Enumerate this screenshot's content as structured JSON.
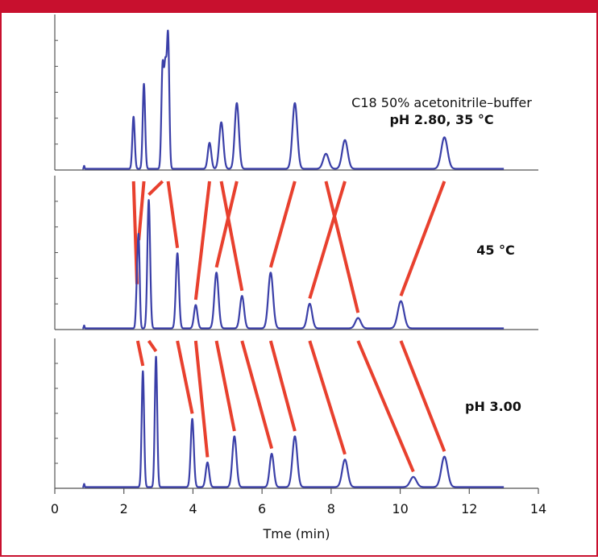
{
  "colors": {
    "frame": "#c8102e",
    "trace": "#3a3fa8",
    "connector": "#e8402e",
    "axis": "#555555"
  },
  "chart_data": {
    "type": "line",
    "title": "",
    "xlabel": "Tme (min)",
    "xlim": [
      0,
      14
    ],
    "xticks": [
      0,
      2,
      4,
      6,
      8,
      10,
      12,
      14
    ],
    "x_end": 13,
    "panels": [
      {
        "label_lines": [
          "C18 50% acetonitrile–buffer",
          "pH 2.80, 35 °C"
        ],
        "label_bold": [
          false,
          true
        ],
        "ymax": 110,
        "dead_time": 0.85,
        "peaks": [
          {
            "t": 2.28,
            "h": 38,
            "w": 0.035
          },
          {
            "t": 2.58,
            "h": 62,
            "w": 0.035
          },
          {
            "t": 3.12,
            "h": 73,
            "w": 0.035
          },
          {
            "t": 3.2,
            "h": 69,
            "w": 0.035
          },
          {
            "t": 3.28,
            "h": 95,
            "w": 0.035
          },
          {
            "t": 4.48,
            "h": 19,
            "w": 0.05
          },
          {
            "t": 4.82,
            "h": 34,
            "w": 0.06
          },
          {
            "t": 5.27,
            "h": 48,
            "w": 0.06
          },
          {
            "t": 6.95,
            "h": 48,
            "w": 0.07
          },
          {
            "t": 7.85,
            "h": 11,
            "w": 0.08
          },
          {
            "t": 8.4,
            "h": 21,
            "w": 0.08
          },
          {
            "t": 11.28,
            "h": 23,
            "w": 0.09
          }
        ]
      },
      {
        "label_lines": [
          "45 °C"
        ],
        "label_bold": [
          true
        ],
        "ymax": 115,
        "dead_time": 0.85,
        "peaks": [
          {
            "t": 2.38,
            "h": 30,
            "w": 0.03
          },
          {
            "t": 2.43,
            "h": 64,
            "w": 0.03
          },
          {
            "t": 2.72,
            "h": 99,
            "w": 0.04
          },
          {
            "t": 3.55,
            "h": 58,
            "w": 0.045
          },
          {
            "t": 4.08,
            "h": 18,
            "w": 0.05
          },
          {
            "t": 4.68,
            "h": 43,
            "w": 0.06
          },
          {
            "t": 5.42,
            "h": 25,
            "w": 0.06
          },
          {
            "t": 6.25,
            "h": 43,
            "w": 0.07
          },
          {
            "t": 7.38,
            "h": 19,
            "w": 0.07
          },
          {
            "t": 8.78,
            "h": 8,
            "w": 0.08
          },
          {
            "t": 10.02,
            "h": 21,
            "w": 0.09
          }
        ]
      },
      {
        "label_lines": [
          "pH 3.00"
        ],
        "label_bold": [
          true
        ],
        "ymax": 100,
        "dead_time": 0.85,
        "peaks": [
          {
            "t": 2.55,
            "h": 80,
            "w": 0.035
          },
          {
            "t": 2.93,
            "h": 90,
            "w": 0.035
          },
          {
            "t": 3.98,
            "h": 47,
            "w": 0.045
          },
          {
            "t": 4.42,
            "h": 17,
            "w": 0.05
          },
          {
            "t": 5.2,
            "h": 35,
            "w": 0.06
          },
          {
            "t": 6.28,
            "h": 23,
            "w": 0.06
          },
          {
            "t": 6.95,
            "h": 35,
            "w": 0.07
          },
          {
            "t": 8.4,
            "h": 19,
            "w": 0.08
          },
          {
            "t": 10.38,
            "h": 7,
            "w": 0.09
          },
          {
            "t": 11.28,
            "h": 21,
            "w": 0.09
          }
        ]
      }
    ],
    "connections_1_2": [
      [
        2.28,
        2.38
      ],
      [
        2.58,
        2.43
      ],
      [
        3.12,
        2.72
      ],
      [
        3.28,
        3.55
      ],
      [
        4.48,
        4.08
      ],
      [
        4.82,
        5.42
      ],
      [
        5.27,
        4.68
      ],
      [
        6.95,
        6.25
      ],
      [
        7.85,
        8.78
      ],
      [
        8.4,
        7.38
      ],
      [
        11.28,
        10.02
      ]
    ],
    "connections_2_3": [
      [
        2.4,
        2.55
      ],
      [
        2.72,
        2.93
      ],
      [
        3.55,
        3.98
      ],
      [
        4.08,
        4.42
      ],
      [
        4.68,
        5.2
      ],
      [
        5.42,
        6.28
      ],
      [
        6.25,
        6.95
      ],
      [
        7.38,
        8.4
      ],
      [
        8.78,
        10.38
      ],
      [
        10.02,
        11.28
      ]
    ]
  }
}
